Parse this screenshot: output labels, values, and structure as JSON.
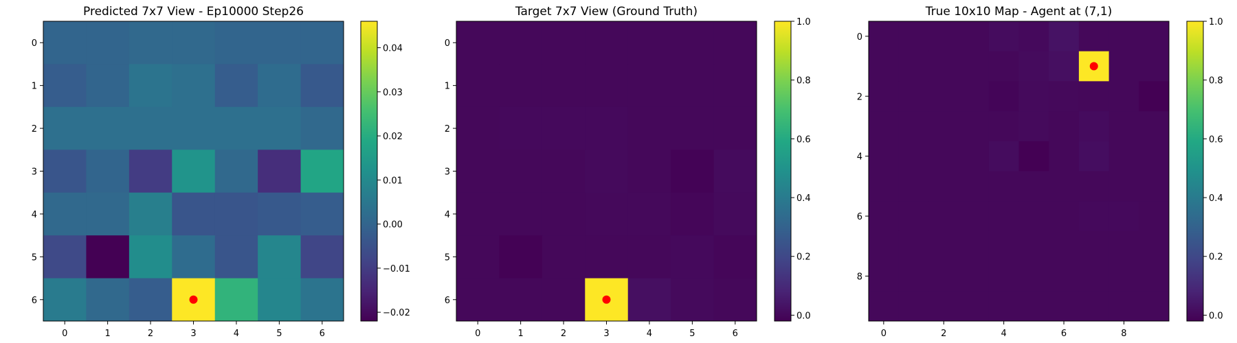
{
  "chart_data": [
    {
      "type": "heatmap",
      "title": "Predicted 7x7 View - Ep10000 Step26",
      "rows": 7,
      "cols": 7,
      "x_ticks": [
        "0",
        "1",
        "2",
        "3",
        "4",
        "5",
        "6"
      ],
      "y_ticks": [
        "0",
        "1",
        "2",
        "3",
        "4",
        "5",
        "6"
      ],
      "vmin": -0.022,
      "vmax": 0.046,
      "colorbar_ticks": [
        0.04,
        0.03,
        0.02,
        0.01,
        0.0,
        -0.01,
        -0.02
      ],
      "colorbar_labels": [
        "0.04",
        "0.03",
        "0.02",
        "0.01",
        "0.00",
        "−0.01",
        "−0.02"
      ],
      "values": [
        [
          0.0,
          0.0,
          0.001,
          0.001,
          0.0,
          0.0,
          0.0
        ],
        [
          -0.002,
          0.0,
          0.004,
          0.003,
          -0.002,
          0.002,
          -0.003
        ],
        [
          0.003,
          0.003,
          0.003,
          0.003,
          0.003,
          0.003,
          0.001
        ],
        [
          -0.004,
          0.0,
          -0.01,
          0.013,
          0.001,
          -0.013,
          0.018
        ],
        [
          0.001,
          0.001,
          0.007,
          -0.004,
          -0.004,
          -0.003,
          -0.002
        ],
        [
          -0.007,
          -0.022,
          0.011,
          0.002,
          -0.004,
          0.009,
          -0.008
        ],
        [
          0.006,
          0.001,
          -0.002,
          0.046,
          0.022,
          0.009,
          0.004
        ]
      ],
      "marker": {
        "col": 3,
        "row": 6,
        "color": "#ff0000"
      }
    },
    {
      "type": "heatmap",
      "title": "Target 7x7 View (Ground Truth)",
      "rows": 7,
      "cols": 7,
      "x_ticks": [
        "0",
        "1",
        "2",
        "3",
        "4",
        "5",
        "6"
      ],
      "y_ticks": [
        "0",
        "1",
        "2",
        "3",
        "4",
        "5",
        "6"
      ],
      "vmin": -0.02,
      "vmax": 1.0,
      "colorbar_ticks": [
        1.0,
        0.8,
        0.6,
        0.4,
        0.2,
        0.0
      ],
      "colorbar_labels": [
        "1.0",
        "0.8",
        "0.6",
        "0.4",
        "0.2",
        "0.0"
      ],
      "values": [
        [
          0.0,
          0.0,
          0.0,
          0.0,
          0.0,
          0.0,
          0.0
        ],
        [
          0.0,
          0.0,
          0.0,
          0.0,
          0.0,
          0.0,
          0.0
        ],
        [
          0.0,
          0.004,
          0.004,
          0.004,
          0.0,
          0.0,
          0.0
        ],
        [
          0.0,
          0.0,
          0.0,
          0.006,
          0.0,
          -0.014,
          0.008
        ],
        [
          0.0,
          0.0,
          0.0,
          0.003,
          0.003,
          -0.004,
          0.006
        ],
        [
          0.0,
          -0.016,
          0.0,
          0.0,
          0.0,
          0.004,
          -0.006
        ],
        [
          0.0,
          0.0,
          0.0,
          1.0,
          0.02,
          0.006,
          0.0
        ]
      ],
      "marker": {
        "col": 3,
        "row": 6,
        "color": "#ff0000"
      }
    },
    {
      "type": "heatmap",
      "title": "True 10x10 Map - Agent at (7,1)",
      "rows": 10,
      "cols": 10,
      "x_ticks": [
        "0",
        "2",
        "4",
        "6",
        "8"
      ],
      "y_ticks": [
        "0",
        "2",
        "4",
        "6",
        "8"
      ],
      "vmin": -0.02,
      "vmax": 1.0,
      "colorbar_ticks": [
        1.0,
        0.8,
        0.6,
        0.4,
        0.2,
        0.0
      ],
      "colorbar_labels": [
        "1.0",
        "0.8",
        "0.6",
        "0.4",
        "0.2",
        "0.0"
      ],
      "values": [
        [
          0.0,
          0.0,
          0.0,
          0.0,
          0.012,
          0.004,
          0.03,
          0.0,
          0.0,
          0.0
        ],
        [
          0.0,
          0.0,
          0.0,
          0.0,
          0.0,
          0.008,
          0.02,
          1.0,
          0.0,
          0.0
        ],
        [
          0.0,
          0.0,
          0.0,
          0.0,
          -0.008,
          0.005,
          0.002,
          0.0,
          0.0,
          -0.02
        ],
        [
          0.0,
          0.0,
          0.0,
          0.0,
          0.0,
          0.006,
          0.0,
          0.01,
          0.0,
          0.0
        ],
        [
          0.0,
          0.0,
          0.0,
          0.0,
          0.012,
          -0.02,
          0.0,
          0.016,
          0.0,
          0.0
        ],
        [
          0.0,
          0.0,
          0.0,
          0.0,
          0.0,
          0.0,
          0.0,
          0.0,
          0.0,
          0.0
        ],
        [
          0.0,
          0.0,
          0.0,
          0.0,
          0.0,
          0.0,
          0.0,
          0.004,
          0.004,
          0.0
        ],
        [
          0.0,
          0.0,
          0.0,
          0.0,
          0.0,
          0.0,
          0.0,
          0.0,
          0.0,
          0.0
        ],
        [
          0.0,
          0.0,
          0.0,
          0.0,
          0.0,
          0.0,
          0.0,
          0.0,
          0.0,
          0.0
        ],
        [
          0.0,
          0.0,
          0.0,
          0.0,
          0.0,
          0.0,
          0.0,
          0.0,
          0.0,
          0.0
        ]
      ],
      "marker": {
        "col": 7,
        "row": 1,
        "color": "#ff0000"
      }
    }
  ]
}
